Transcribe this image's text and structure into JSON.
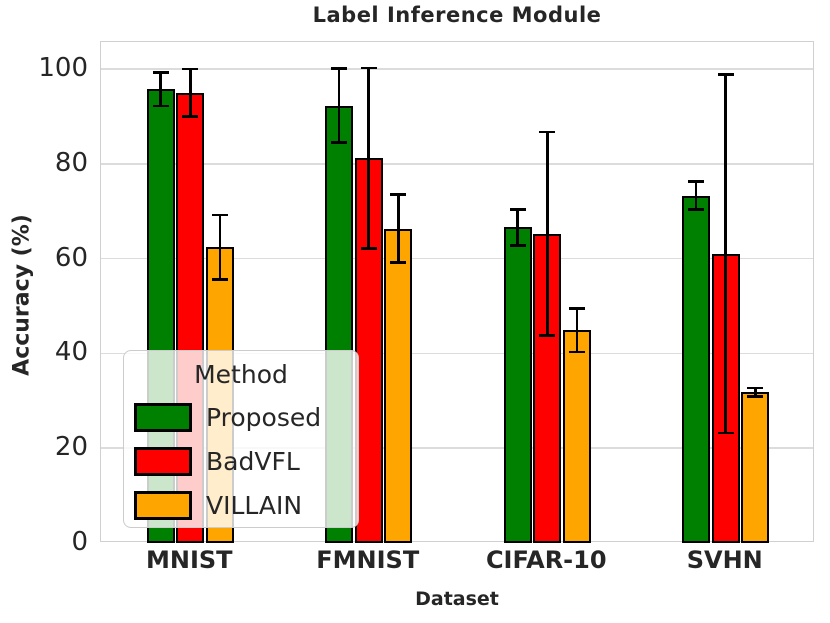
{
  "chart_data": {
    "type": "bar",
    "title": "Label Inference Module",
    "xlabel": "Dataset",
    "ylabel": "Accuracy (%)",
    "categories": [
      "MNIST",
      "FMNIST",
      "CIFAR-10",
      "SVHN"
    ],
    "series": [
      {
        "name": "Proposed",
        "color": "#008000",
        "values": [
          95.7,
          92.3,
          66.6,
          73.3
        ],
        "errors": [
          3.5,
          7.8,
          3.8,
          2.9
        ]
      },
      {
        "name": "BadVFL",
        "color": "#ff0000",
        "values": [
          95.0,
          81.2,
          65.2,
          61.0
        ],
        "errors": [
          5.0,
          19.0,
          21.5,
          37.8
        ]
      },
      {
        "name": "VILLAIN",
        "color": "#ffa500",
        "values": [
          62.4,
          66.3,
          44.9,
          31.8
        ],
        "errors": [
          6.8,
          7.2,
          4.6,
          0.9
        ]
      }
    ],
    "ylim": [
      0,
      105.7
    ],
    "yticks": [
      0,
      20,
      40,
      60,
      80,
      100
    ],
    "grid": true,
    "error_bars": true,
    "bar_edge_color": "#000000",
    "grid_color": "#dcdcdc",
    "text_color": "#262626",
    "legend": {
      "title": "Method",
      "position": "lower left"
    }
  }
}
